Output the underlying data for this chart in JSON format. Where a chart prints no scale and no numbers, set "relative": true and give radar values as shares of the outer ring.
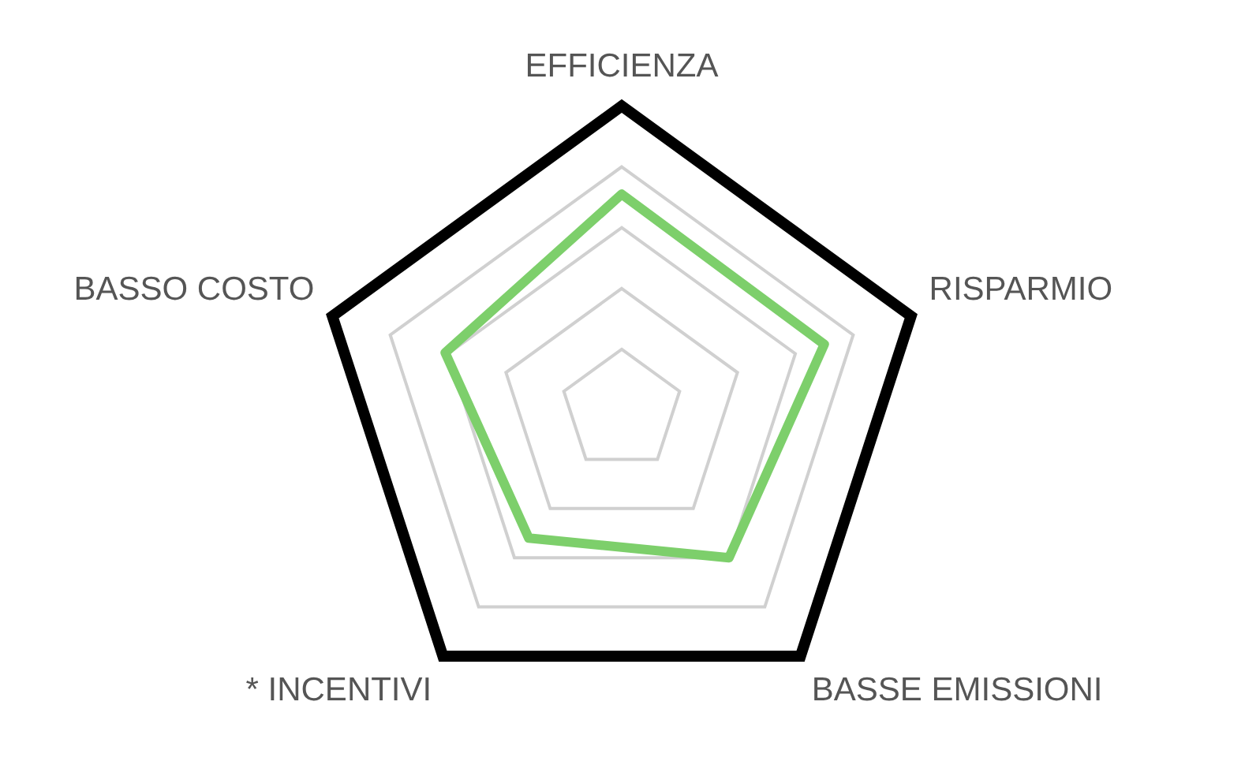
{
  "chart_data": {
    "type": "radar",
    "relative": true,
    "grid": true,
    "marker": "none",
    "categories": [
      "EFFICIENZA",
      "RISPARMIO",
      "BASSE EMISSIONI",
      "* INCENTIVI",
      "BASSO COSTO"
    ],
    "series": [
      {
        "color": "#7dcf6b",
        "values": [
          0.71,
          0.7,
          0.6,
          0.52,
          0.61
        ]
      }
    ]
  }
}
